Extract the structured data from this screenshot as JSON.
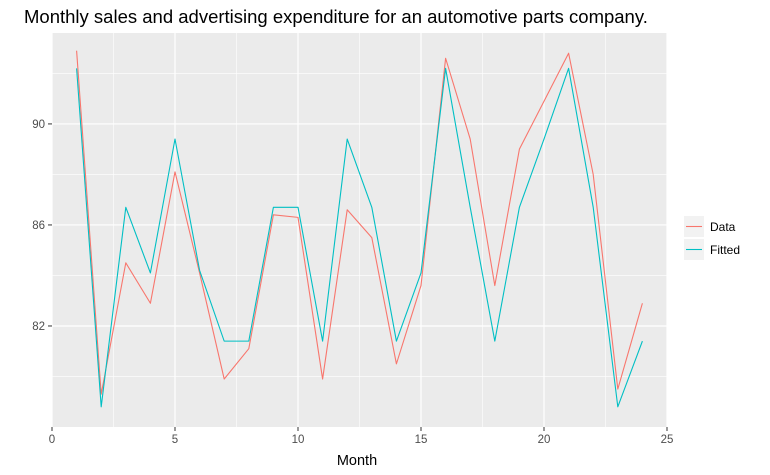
{
  "chart_data": {
    "type": "line",
    "title": "Monthly sales and advertising expenditure for an automotive parts company.",
    "xlabel": "Month",
    "ylabel": "",
    "xlim": [
      0,
      25
    ],
    "ylim": [
      78,
      93.6
    ],
    "x_ticks": [
      0,
      5,
      10,
      15,
      20,
      25
    ],
    "y_ticks": [
      82,
      86,
      90
    ],
    "grid": true,
    "legend_position": "right",
    "x": [
      1,
      2,
      3,
      4,
      5,
      6,
      7,
      8,
      9,
      10,
      11,
      12,
      13,
      14,
      15,
      16,
      17,
      18,
      19,
      20,
      21,
      22,
      23,
      24
    ],
    "series": [
      {
        "name": "Data",
        "color": "#f8766d",
        "values": [
          92.9,
          79.3,
          84.5,
          82.9,
          88.1,
          84.1,
          79.9,
          81.1,
          86.4,
          86.3,
          79.9,
          86.6,
          85.5,
          80.5,
          83.6,
          92.6,
          89.4,
          83.6,
          89.0,
          90.9,
          92.8,
          88.0,
          79.5,
          82.9
        ]
      },
      {
        "name": "Fitted",
        "color": "#00bfc4",
        "values": [
          92.2,
          78.8,
          86.7,
          84.1,
          89.4,
          84.2,
          81.4,
          81.4,
          86.7,
          86.7,
          81.4,
          89.4,
          86.7,
          81.4,
          84.1,
          92.2,
          86.7,
          81.4,
          86.7,
          89.4,
          92.2,
          86.7,
          78.8,
          81.4
        ]
      }
    ]
  }
}
